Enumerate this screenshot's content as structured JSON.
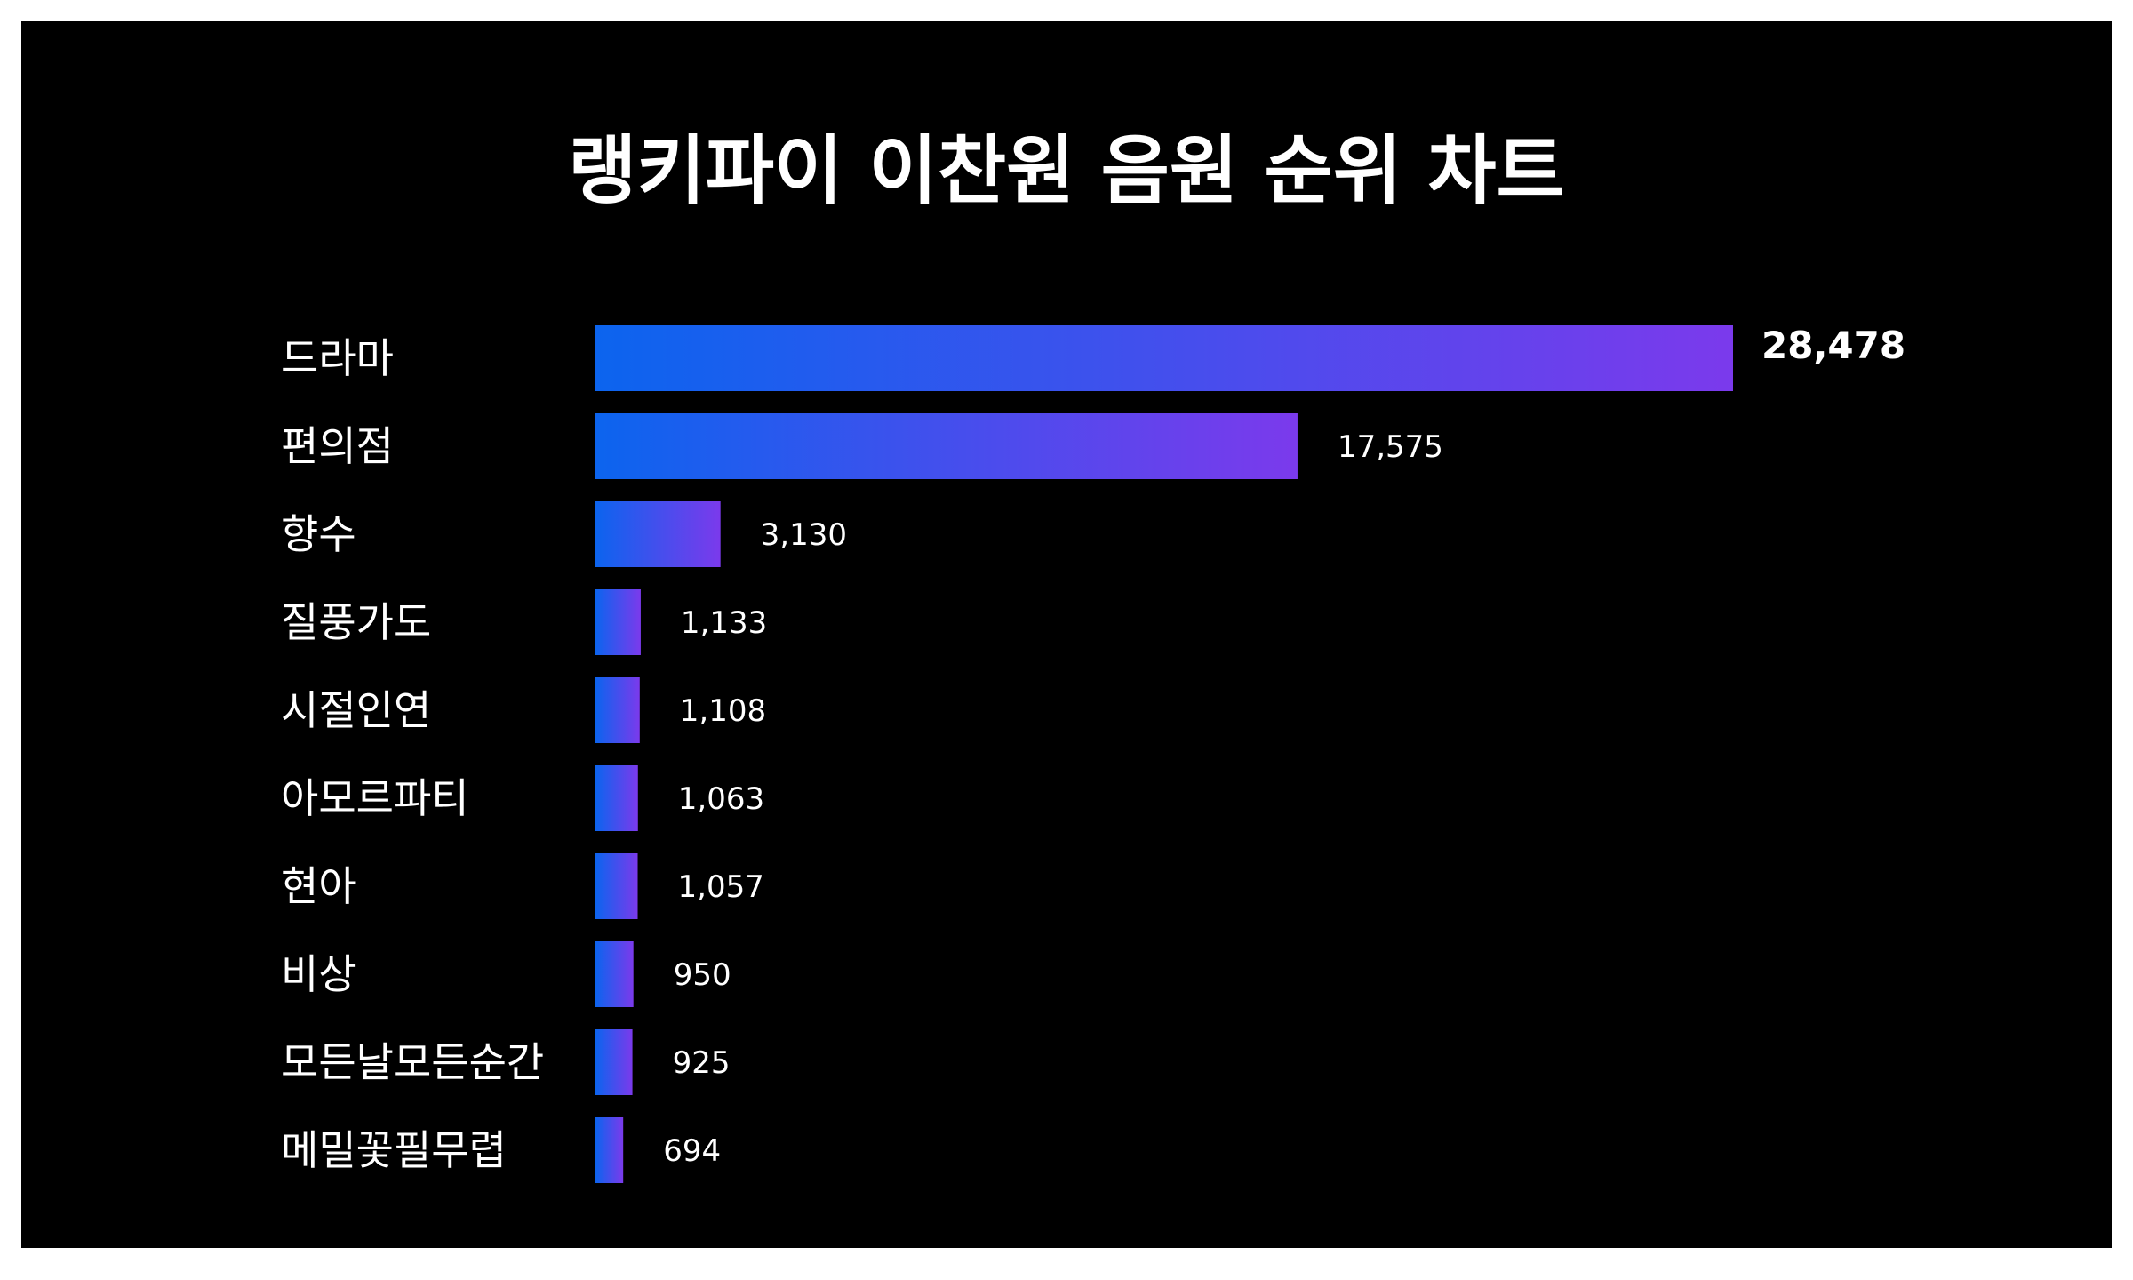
{
  "chart_data": {
    "type": "bar",
    "orientation": "horizontal",
    "title": "랭키파이 이찬원 음원 순위 차트",
    "categories": [
      "드라마",
      "편의점",
      "향수",
      "질풍가도",
      "시절인연",
      "아모르파티",
      "현아",
      "비상",
      "모든날모든순간",
      "메밀꽃필무렵"
    ],
    "values": [
      28478,
      17575,
      3130,
      1133,
      1108,
      1063,
      1057,
      950,
      925,
      694
    ],
    "value_labels": [
      "28,478",
      "17,575",
      "3,130",
      "1,133",
      "1,108",
      "1,063",
      "1,057",
      "950",
      "925",
      "694"
    ],
    "xlabel": "",
    "ylabel": "",
    "grid": false,
    "legend": "none"
  },
  "colors": {
    "background": "#000000",
    "frame": "#ffffff",
    "text": "#ffffff",
    "bar_gradient_start": "#0c64ee",
    "bar_gradient_end": "#7b3aec"
  }
}
